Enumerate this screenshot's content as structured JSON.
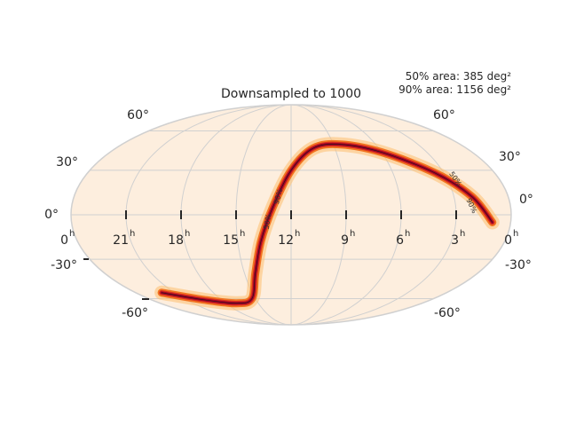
{
  "chart_data": {
    "type": "sky-map",
    "projection": "mollweide",
    "title": "Downsampled to 1000",
    "annotations": [
      "50% area: 385 deg²",
      "90% area: 1156 deg²"
    ],
    "latitude_ticks": [
      {
        "lat": 60,
        "label": "60°"
      },
      {
        "lat": 30,
        "label": "30°"
      },
      {
        "lat": 0,
        "label": "0°"
      },
      {
        "lat": -30,
        "label": "-30°"
      },
      {
        "lat": -60,
        "label": "-60°"
      }
    ],
    "ra_ticks": [
      {
        "hour": 0,
        "label": "0",
        "sup": "h"
      },
      {
        "hour": 21,
        "label": "21",
        "sup": "h"
      },
      {
        "hour": 18,
        "label": "18",
        "sup": "h"
      },
      {
        "hour": 15,
        "label": "15",
        "sup": "h"
      },
      {
        "hour": 12,
        "label": "12",
        "sup": "h"
      },
      {
        "hour": 9,
        "label": "9",
        "sup": "h"
      },
      {
        "hour": 6,
        "label": "6",
        "sup": "h"
      },
      {
        "hour": 3,
        "label": "3",
        "sup": "h"
      },
      {
        "hour": 0,
        "label": "0",
        "sup": "h"
      }
    ],
    "contour_labels": [
      "50%",
      "90%"
    ],
    "probability_path": [
      {
        "ra_h": 22.0,
        "dec": -55
      },
      {
        "ra_h": 19.5,
        "dec": -61
      },
      {
        "ra_h": 17.0,
        "dec": -64
      },
      {
        "ra_h": 15.3,
        "dec": -60
      },
      {
        "ra_h": 14.3,
        "dec": -40
      },
      {
        "ra_h": 13.7,
        "dec": -18
      },
      {
        "ra_h": 13.0,
        "dec": 5
      },
      {
        "ra_h": 12.0,
        "dec": 30
      },
      {
        "ra_h": 10.5,
        "dec": 46
      },
      {
        "ra_h": 8.5,
        "dec": 49
      },
      {
        "ra_h": 6.0,
        "dec": 43
      },
      {
        "ra_h": 3.5,
        "dec": 28
      },
      {
        "ra_h": 2.0,
        "dec": 12
      },
      {
        "ra_h": 1.0,
        "dec": -5
      }
    ],
    "colormap": [
      "#fdeedf",
      "#fdbf6f",
      "#f16913",
      "#d7301f",
      "#a50026"
    ]
  }
}
